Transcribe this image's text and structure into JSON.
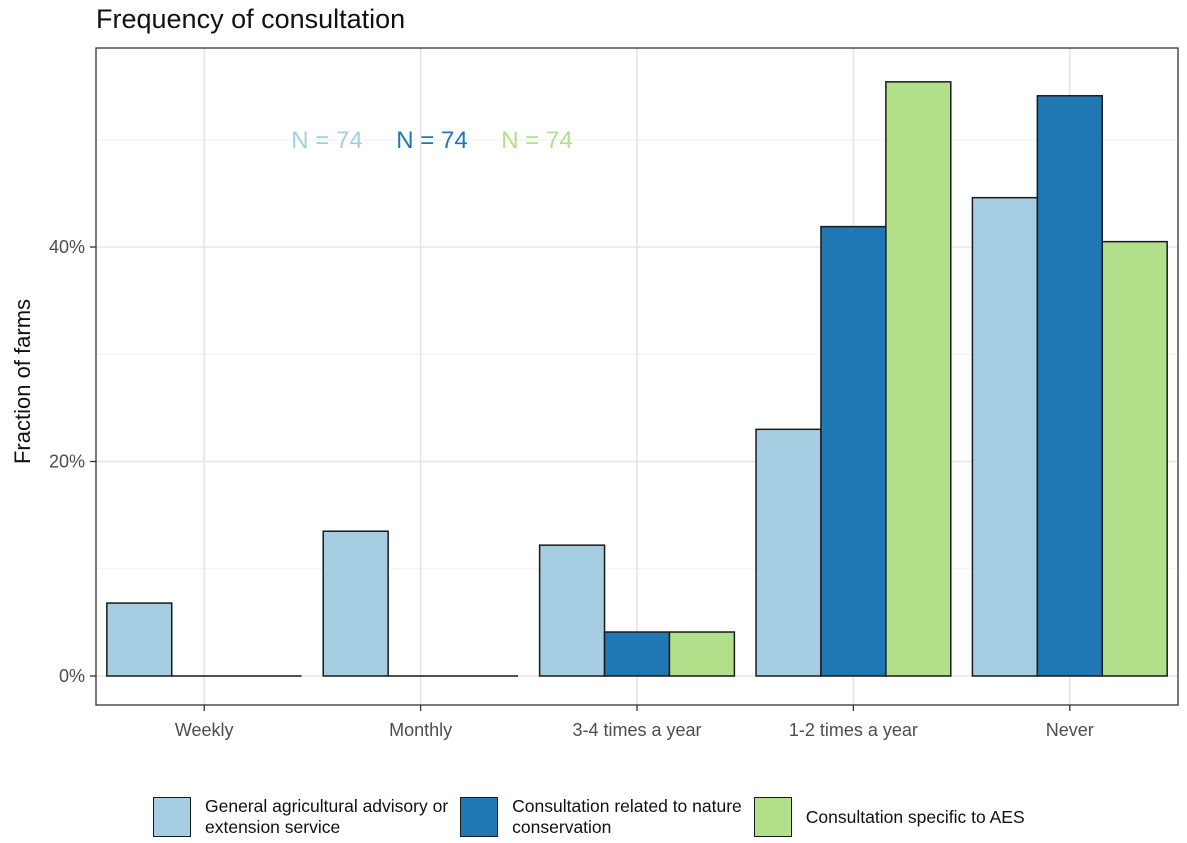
{
  "chart_data": {
    "type": "bar",
    "title": "Frequency of consultation",
    "xlabel": "",
    "ylabel": "Fraction of farms",
    "categories": [
      "Weekly",
      "Monthly",
      "3-4 times a year",
      "1-2 times a year",
      "Never"
    ],
    "y_ticks": [
      0,
      20,
      40
    ],
    "y_tick_labels": [
      "0%",
      "20%",
      "40%"
    ],
    "ylim": [
      -3,
      58
    ],
    "grid": true,
    "legend_position": "bottom",
    "series": [
      {
        "name": "General agricultural advisory or extension service",
        "legend_label": "General agricultural advisory or\nextension service",
        "color": "#a6cee3",
        "values": [
          6.8,
          13.5,
          12.2,
          23.0,
          44.6
        ],
        "n_label": "N = 74"
      },
      {
        "name": "Consultation related to nature conservation",
        "legend_label": "Consultation related to nature\nconservation",
        "color": "#1f78b4",
        "values": [
          0,
          0,
          4.1,
          41.9,
          54.1
        ],
        "n_label": "N = 74"
      },
      {
        "name": "Consultation specific to AES",
        "legend_label": "Consultation specific to AES",
        "color": "#b2df8a",
        "values": [
          0,
          0,
          4.1,
          55.4,
          40.5
        ],
        "n_label": "N = 74"
      }
    ]
  }
}
